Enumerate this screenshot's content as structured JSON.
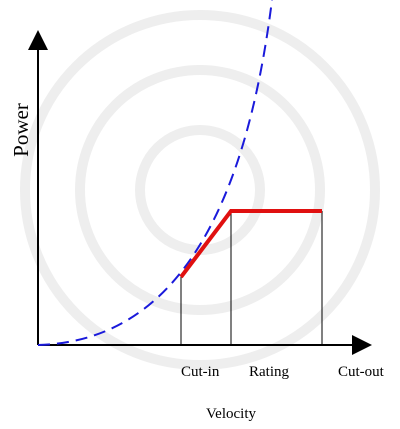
{
  "axes": {
    "y_label": "Power",
    "x_label": "Velocity"
  },
  "markers": [
    "Cut-in",
    "Rating",
    "Cut-out"
  ]
}
